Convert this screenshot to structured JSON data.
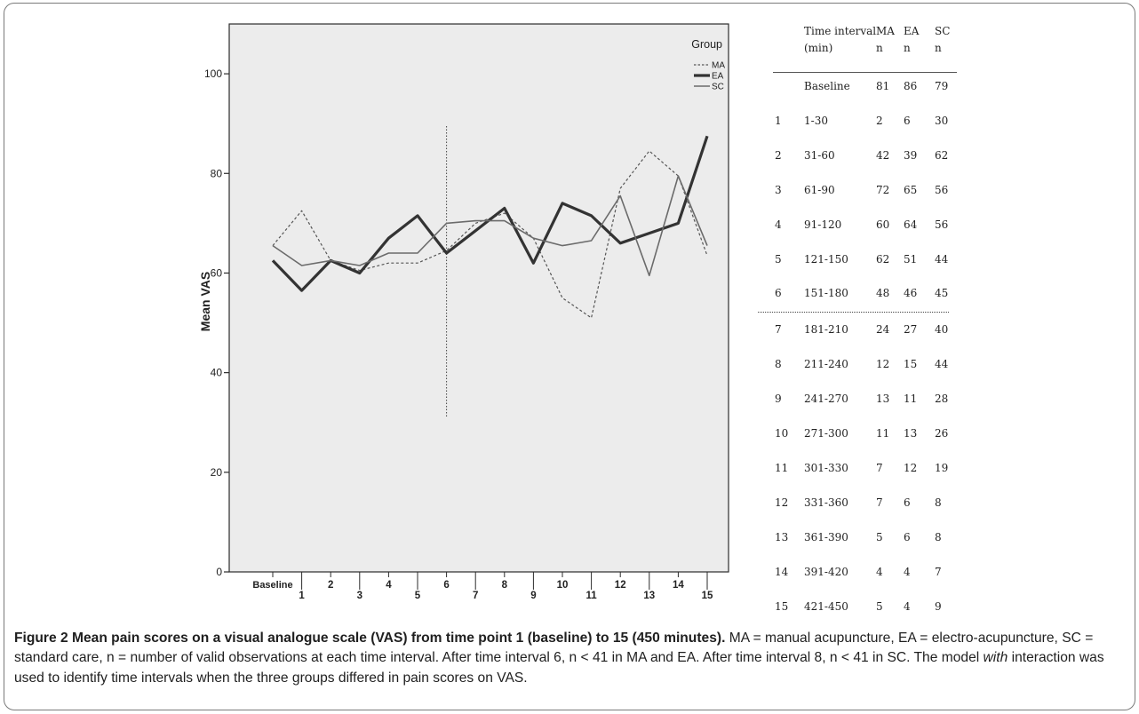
{
  "chart_data": {
    "type": "line",
    "ylabel": "Mean VAS",
    "xlabel": "",
    "ylim": [
      0,
      110
    ],
    "yticks": [
      0,
      20,
      40,
      60,
      80,
      100
    ],
    "categories": [
      "Baseline",
      "1",
      "2",
      "3",
      "4",
      "5",
      "6",
      "7",
      "8",
      "9",
      "10",
      "11",
      "12",
      "13",
      "14",
      "15"
    ],
    "legend_title": "Group",
    "legend_position": "top-right",
    "reference_line_at": "6",
    "series": [
      {
        "name": "MA",
        "style": "dotted",
        "color": "#555555",
        "values": [
          65.5,
          72.5,
          62.5,
          60.5,
          62.0,
          62.0,
          64.5,
          70.0,
          72.0,
          67.0,
          55.0,
          51.0,
          77.0,
          84.5,
          79.5,
          63.5
        ]
      },
      {
        "name": "EA",
        "style": "thick",
        "color": "#333333",
        "values": [
          62.5,
          56.5,
          62.5,
          60.0,
          67.0,
          71.5,
          64.0,
          68.5,
          73.0,
          62.0,
          74.0,
          71.5,
          66.0,
          68.0,
          70.0,
          87.5
        ]
      },
      {
        "name": "SC",
        "style": "thin",
        "color": "#6b6b6b",
        "values": [
          65.5,
          61.5,
          62.5,
          61.5,
          64.0,
          64.0,
          70.0,
          70.5,
          70.5,
          67.0,
          65.5,
          66.5,
          75.5,
          59.5,
          79.5,
          65.5
        ]
      }
    ]
  },
  "table": {
    "headers": [
      {
        "line1": "Time interval",
        "line2": "(min)"
      },
      {
        "line1": "MA",
        "line2": "n"
      },
      {
        "line1": "EA",
        "line2": "n"
      },
      {
        "line1": "SC",
        "line2": "n"
      }
    ],
    "rows": [
      {
        "idx": "",
        "interval": "Baseline",
        "ma": "81",
        "ea": "86",
        "sc": "79"
      },
      {
        "idx": "1",
        "interval": "1-30",
        "ma": "2",
        "ea": "6",
        "sc": "30"
      },
      {
        "idx": "2",
        "interval": "31-60",
        "ma": "42",
        "ea": "39",
        "sc": "62"
      },
      {
        "idx": "3",
        "interval": "61-90",
        "ma": "72",
        "ea": "65",
        "sc": "56"
      },
      {
        "idx": "4",
        "interval": "91-120",
        "ma": "60",
        "ea": "64",
        "sc": "56"
      },
      {
        "idx": "5",
        "interval": "121-150",
        "ma": "62",
        "ea": "51",
        "sc": "44"
      },
      {
        "idx": "6",
        "interval": "151-180",
        "ma": "48",
        "ea": "46",
        "sc": "45"
      },
      {
        "idx": "7",
        "interval": "181-210",
        "ma": "24",
        "ea": "27",
        "sc": "40"
      },
      {
        "idx": "8",
        "interval": "211-240",
        "ma": "12",
        "ea": "15",
        "sc": "44"
      },
      {
        "idx": "9",
        "interval": "241-270",
        "ma": "13",
        "ea": "11",
        "sc": "28"
      },
      {
        "idx": "10",
        "interval": "271-300",
        "ma": "11",
        "ea": "13",
        "sc": "26"
      },
      {
        "idx": "11",
        "interval": "301-330",
        "ma": "7",
        "ea": "12",
        "sc": "19"
      },
      {
        "idx": "12",
        "interval": "331-360",
        "ma": "7",
        "ea": "6",
        "sc": "8"
      },
      {
        "idx": "13",
        "interval": "361-390",
        "ma": "5",
        "ea": "6",
        "sc": "8"
      },
      {
        "idx": "14",
        "interval": "391-420",
        "ma": "4",
        "ea": "4",
        "sc": "7"
      },
      {
        "idx": "15",
        "interval": "421-450",
        "ma": "5",
        "ea": "4",
        "sc": "9"
      }
    ]
  },
  "caption": {
    "bold": "Figure 2 Mean pain scores on a visual analogue scale (VAS) from time point 1 (baseline) to 15 (450 minutes).",
    "text1": " MA = manual acupuncture, EA = electro-acupuncture, SC = standard care, n = number of valid observations at each time interval. After time interval 6, n < 41 in MA and EA. After time interval 8, n < 41 in SC. The model ",
    "italic": "with",
    "text2": " interaction was used to identify time intervals when the three groups differed in pain scores on VAS."
  }
}
